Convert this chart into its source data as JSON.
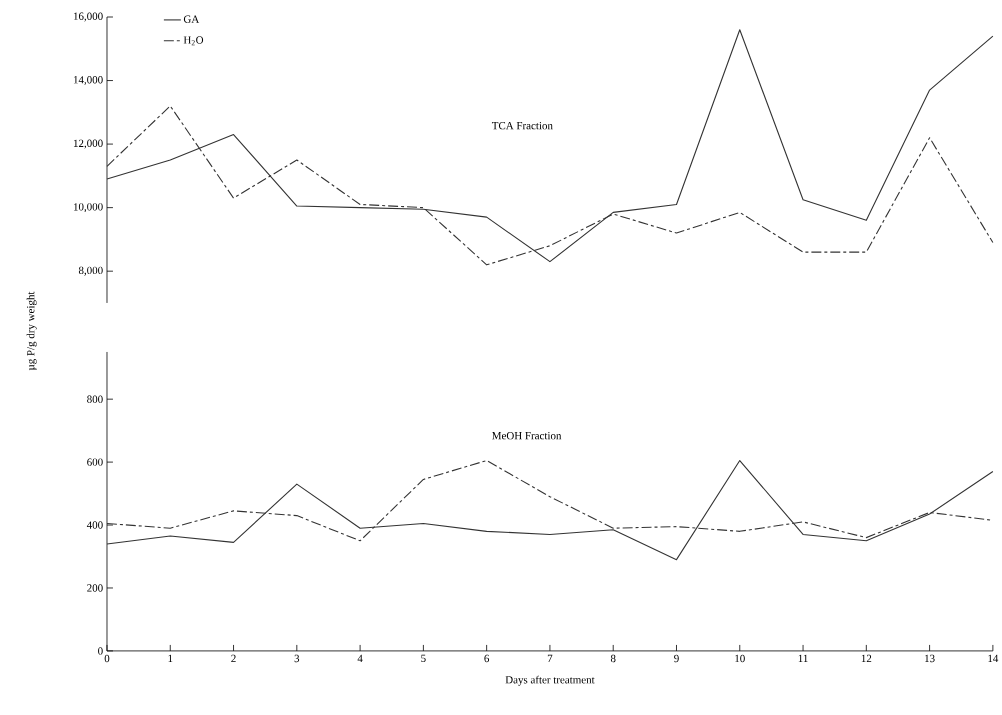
{
  "chart_data": [
    {
      "type": "line",
      "x": [
        0,
        1,
        2,
        3,
        4,
        5,
        6,
        7,
        8,
        9,
        10,
        11,
        12,
        13,
        14
      ],
      "xlim": [
        0,
        14
      ],
      "ylim": [
        7000,
        16000
      ],
      "yticks": [
        {
          "value": 8000,
          "label": "8,000"
        },
        {
          "value": 10000,
          "label": "10,000"
        },
        {
          "value": 12000,
          "label": "12,000"
        },
        {
          "value": 14000,
          "label": "14,000"
        },
        {
          "value": 16000,
          "label": "16,000"
        }
      ],
      "tick_labels": "y",
      "legend": "top left",
      "annotations": [
        "TCA Fraction"
      ],
      "series": [
        {
          "name": "GA",
          "color": "#333333",
          "line_style": "solid",
          "values": [
            10900,
            11500,
            12300,
            10050,
            10000,
            9950,
            9700,
            8300,
            9850,
            10100,
            15600,
            10250,
            9600,
            13700,
            15400
          ]
        },
        {
          "name": "H$_{2}$O",
          "color": "#333333",
          "line_style": "dashed",
          "values": [
            11300,
            13200,
            10300,
            11500,
            10100,
            10000,
            8200,
            8800,
            9800,
            9200,
            9850,
            8600,
            8600,
            12200,
            8900
          ]
        }
      ]
    },
    {
      "type": "line",
      "x": [
        0,
        1,
        2,
        3,
        4,
        5,
        6,
        7,
        8,
        9,
        10,
        11,
        12,
        13,
        14
      ],
      "xlim": [
        0,
        14
      ],
      "ylim": [
        0,
        950
      ],
      "xticks": [
        0,
        1,
        2,
        3,
        4,
        5,
        6,
        7,
        8,
        9,
        10,
        11,
        12,
        13,
        14
      ],
      "yticks": [
        0,
        200,
        400,
        600,
        800
      ],
      "xlabel": "Days after treatment",
      "ylabel": "µg P/g dry weight",
      "annotations": [
        "MeOH Fraction"
      ],
      "series": [
        {
          "color": "#333333",
          "line_style": "solid",
          "values": [
            340,
            365,
            345,
            530,
            390,
            405,
            380,
            370,
            385,
            290,
            605,
            370,
            350,
            435,
            570
          ]
        },
        {
          "color": "#333333",
          "line_style": "dashed",
          "values": [
            405,
            390,
            445,
            430,
            350,
            545,
            605,
            490,
            390,
            395,
            380,
            410,
            360,
            440,
            415
          ]
        }
      ]
    }
  ]
}
